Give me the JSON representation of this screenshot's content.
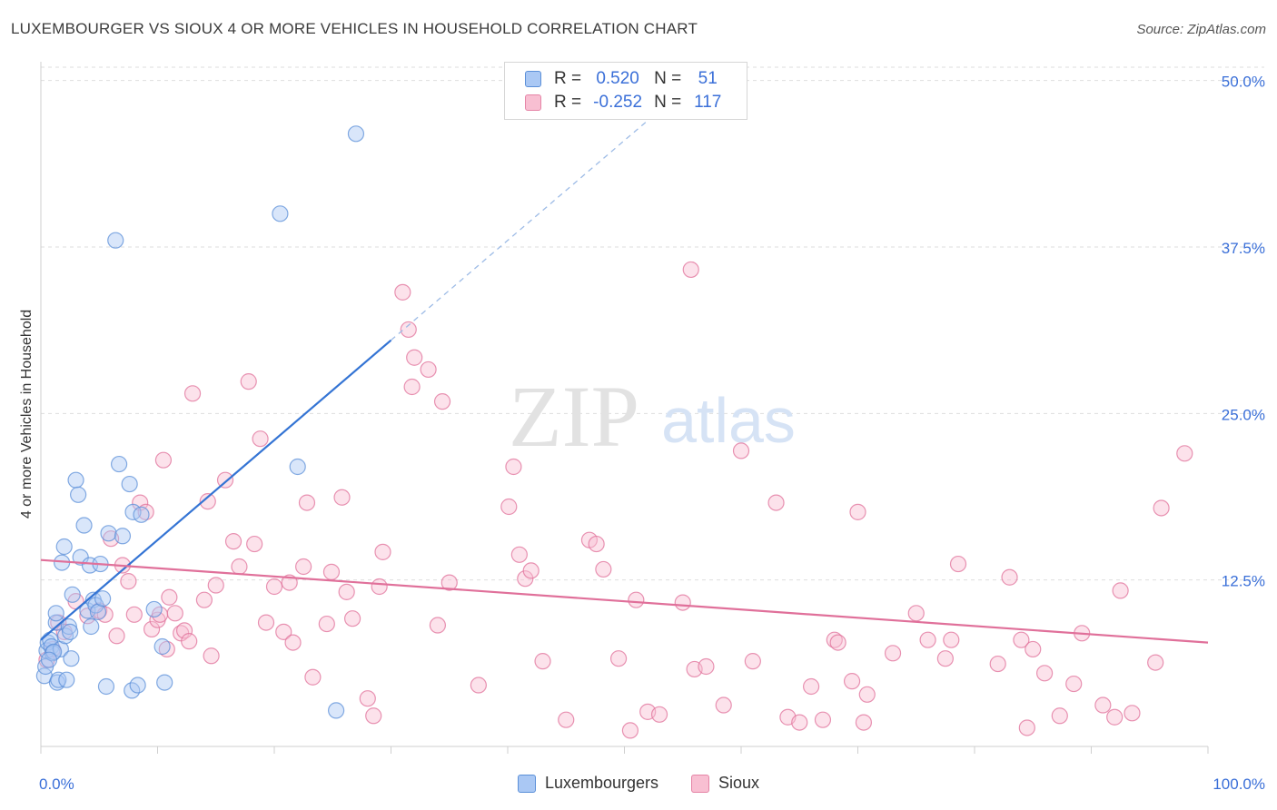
{
  "title": "LUXEMBOURGER VS SIOUX 4 OR MORE VEHICLES IN HOUSEHOLD CORRELATION CHART",
  "source": "Source: ZipAtlas.com",
  "watermark": {
    "zip": "ZIP",
    "atlas": "atlas"
  },
  "legend": {
    "r_label": "R =",
    "n_label": "N =",
    "rows": [
      {
        "series": "Luxembourgers",
        "r": "0.520",
        "n": "51",
        "fill": "#aac8f4",
        "stroke": "#5b8fd8"
      },
      {
        "series": "Sioux",
        "r": "-0.252",
        "n": "117",
        "fill": "#f8bfd2",
        "stroke": "#e584a6"
      }
    ]
  },
  "chart_data": {
    "type": "scatter",
    "title": "LUXEMBOURGER VS SIOUX 4 OR MORE VEHICLES IN HOUSEHOLD CORRELATION CHART",
    "xlabel": "",
    "ylabel": "4 or more Vehicles in Household",
    "xlim": [
      0,
      100
    ],
    "ylim": [
      0,
      51
    ],
    "x_tick_labels": [
      "0.0%",
      "100.0%"
    ],
    "y_ticks": [
      12.5,
      25.0,
      37.5,
      50.0
    ],
    "y_tick_labels": [
      "12.5%",
      "25.0%",
      "37.5%",
      "50.0%"
    ],
    "grid": true,
    "series": [
      {
        "name": "Luxembourgers",
        "color": "#5b8fd8",
        "fill": "#aac8f4",
        "trend": {
          "x0": 0,
          "y0": 8.0,
          "x1": 30,
          "y1": 30.5,
          "dashed_to_x": 55
        },
        "points": [
          [
            0.3,
            5.3
          ],
          [
            0.4,
            6.0
          ],
          [
            0.5,
            7.2
          ],
          [
            0.6,
            7.8
          ],
          [
            0.8,
            8.0
          ],
          [
            0.9,
            7.5
          ],
          [
            1.0,
            7.0
          ],
          [
            1.3,
            9.3
          ],
          [
            1.3,
            10.0
          ],
          [
            1.4,
            4.8
          ],
          [
            1.5,
            5.0
          ],
          [
            1.7,
            7.3
          ],
          [
            1.8,
            13.8
          ],
          [
            2.0,
            15.0
          ],
          [
            2.1,
            8.3
          ],
          [
            2.2,
            5.0
          ],
          [
            2.4,
            9.0
          ],
          [
            2.6,
            6.6
          ],
          [
            2.7,
            11.4
          ],
          [
            3.0,
            20.0
          ],
          [
            3.2,
            18.9
          ],
          [
            3.4,
            14.2
          ],
          [
            3.7,
            16.6
          ],
          [
            4.0,
            10.2
          ],
          [
            4.2,
            13.6
          ],
          [
            4.3,
            9.0
          ],
          [
            4.5,
            11.0
          ],
          [
            4.7,
            10.6
          ],
          [
            4.9,
            10.1
          ],
          [
            5.1,
            13.7
          ],
          [
            5.3,
            11.1
          ],
          [
            5.6,
            4.5
          ],
          [
            5.8,
            16.0
          ],
          [
            6.4,
            38.0
          ],
          [
            6.7,
            21.2
          ],
          [
            7.0,
            15.8
          ],
          [
            7.6,
            19.7
          ],
          [
            7.8,
            4.2
          ],
          [
            7.9,
            17.6
          ],
          [
            8.3,
            4.6
          ],
          [
            8.6,
            17.4
          ],
          [
            9.7,
            10.3
          ],
          [
            10.4,
            7.5
          ],
          [
            10.6,
            4.8
          ],
          [
            20.5,
            40.0
          ],
          [
            22.0,
            21.0
          ],
          [
            25.3,
            2.7
          ],
          [
            27.0,
            46.0
          ],
          [
            1.1,
            7.1
          ],
          [
            2.5,
            8.6
          ],
          [
            0.7,
            6.5
          ]
        ]
      },
      {
        "name": "Sioux",
        "color": "#e0709a",
        "fill": "#f8bfd2",
        "trend": {
          "x0": 0,
          "y0": 14.0,
          "x1": 100,
          "y1": 7.8
        },
        "points": [
          [
            0.5,
            6.5
          ],
          [
            1.0,
            7.3
          ],
          [
            1.5,
            9.3
          ],
          [
            2.0,
            8.6
          ],
          [
            3.0,
            10.9
          ],
          [
            4.0,
            9.8
          ],
          [
            5.0,
            10.2
          ],
          [
            5.5,
            9.9
          ],
          [
            6.0,
            15.6
          ],
          [
            6.5,
            8.3
          ],
          [
            7.0,
            13.6
          ],
          [
            7.5,
            12.4
          ],
          [
            8.0,
            9.9
          ],
          [
            8.5,
            18.3
          ],
          [
            9.0,
            17.6
          ],
          [
            9.5,
            8.8
          ],
          [
            10.0,
            9.5
          ],
          [
            10.2,
            9.9
          ],
          [
            10.5,
            21.5
          ],
          [
            10.8,
            7.3
          ],
          [
            11.0,
            11.2
          ],
          [
            11.5,
            10.0
          ],
          [
            12.0,
            8.5
          ],
          [
            12.3,
            8.7
          ],
          [
            12.7,
            7.9
          ],
          [
            13.0,
            26.5
          ],
          [
            14.0,
            11.0
          ],
          [
            14.3,
            18.4
          ],
          [
            14.6,
            6.8
          ],
          [
            15.0,
            12.1
          ],
          [
            15.8,
            20.0
          ],
          [
            16.5,
            15.4
          ],
          [
            17.0,
            13.5
          ],
          [
            17.8,
            27.4
          ],
          [
            18.3,
            15.2
          ],
          [
            18.8,
            23.1
          ],
          [
            19.3,
            9.3
          ],
          [
            20.0,
            12.0
          ],
          [
            20.8,
            8.6
          ],
          [
            21.3,
            12.3
          ],
          [
            21.6,
            7.8
          ],
          [
            22.5,
            13.5
          ],
          [
            22.8,
            18.3
          ],
          [
            23.3,
            5.2
          ],
          [
            24.5,
            9.2
          ],
          [
            24.9,
            13.1
          ],
          [
            25.8,
            18.7
          ],
          [
            26.2,
            11.6
          ],
          [
            26.7,
            9.6
          ],
          [
            28.0,
            3.6
          ],
          [
            28.5,
            2.3
          ],
          [
            29.0,
            12.0
          ],
          [
            29.3,
            14.6
          ],
          [
            31.0,
            34.1
          ],
          [
            31.5,
            31.3
          ],
          [
            32.0,
            29.2
          ],
          [
            31.8,
            27.0
          ],
          [
            33.2,
            28.3
          ],
          [
            34.0,
            9.1
          ],
          [
            34.4,
            25.9
          ],
          [
            35.0,
            12.3
          ],
          [
            40.1,
            18.0
          ],
          [
            40.5,
            21.0
          ],
          [
            41.0,
            14.4
          ],
          [
            41.5,
            12.6
          ],
          [
            42.0,
            13.2
          ],
          [
            43.0,
            6.4
          ],
          [
            47.0,
            15.5
          ],
          [
            47.6,
            15.2
          ],
          [
            48.2,
            13.3
          ],
          [
            49.5,
            6.6
          ],
          [
            50.5,
            1.2
          ],
          [
            51.0,
            11.0
          ],
          [
            52.0,
            2.6
          ],
          [
            53.0,
            2.4
          ],
          [
            55.0,
            10.8
          ],
          [
            56.0,
            5.8
          ],
          [
            57.0,
            6.0
          ],
          [
            55.7,
            35.8
          ],
          [
            58.5,
            3.1
          ],
          [
            60.0,
            22.2
          ],
          [
            61.0,
            6.4
          ],
          [
            63.0,
            18.3
          ],
          [
            64.0,
            2.2
          ],
          [
            65.0,
            1.8
          ],
          [
            66.0,
            4.5
          ],
          [
            67.0,
            2.0
          ],
          [
            68.0,
            8.0
          ],
          [
            68.3,
            7.8
          ],
          [
            69.5,
            4.9
          ],
          [
            70.0,
            17.6
          ],
          [
            70.5,
            1.8
          ],
          [
            70.8,
            3.9
          ],
          [
            73.0,
            7.0
          ],
          [
            75.0,
            10.0
          ],
          [
            76.0,
            8.0
          ],
          [
            77.5,
            6.6
          ],
          [
            78.0,
            8.0
          ],
          [
            78.6,
            13.7
          ],
          [
            82.0,
            6.2
          ],
          [
            83.0,
            12.7
          ],
          [
            84.0,
            8.0
          ],
          [
            84.5,
            1.4
          ],
          [
            85.0,
            7.3
          ],
          [
            86.0,
            5.5
          ],
          [
            87.3,
            2.3
          ],
          [
            88.5,
            4.7
          ],
          [
            89.2,
            8.5
          ],
          [
            91.0,
            3.1
          ],
          [
            92.0,
            2.2
          ],
          [
            92.5,
            11.7
          ],
          [
            93.5,
            2.5
          ],
          [
            95.5,
            6.3
          ],
          [
            96.0,
            17.9
          ],
          [
            98.0,
            22.0
          ],
          [
            45.0,
            2.0
          ],
          [
            37.5,
            4.6
          ]
        ]
      }
    ]
  },
  "axis_labels": {
    "x_left": "0.0%",
    "x_right": "100.0%"
  }
}
